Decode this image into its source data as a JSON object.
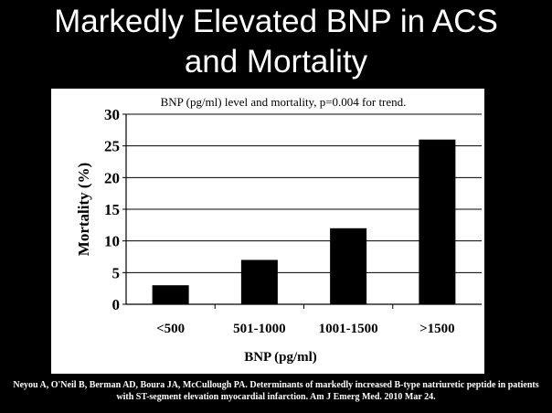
{
  "slide": {
    "title_line1": "Markedly Elevated BNP in ACS",
    "title_line2": "and Mortality",
    "citation_line1": "Neyou A, O'Neil B, Berman AD, Boura JA, McCullough PA.  Determinants of markedly increased B-type natriuretic peptide in patients",
    "citation_line2": "with ST-segment elevation myocardial infarction.  Am J Emerg Med. 2010 Mar 24."
  },
  "chart_data": {
    "type": "bar",
    "title": "BNP (pg/ml) level and mortality, p=0.004 for trend.",
    "xlabel": "BNP (pg/ml)",
    "ylabel": "Mortality (%)",
    "categories": [
      "<500",
      "501-1000",
      "1001-1500",
      ">1500"
    ],
    "values": [
      3,
      7,
      12,
      26
    ],
    "ylim": [
      0,
      30
    ],
    "yticks": [
      0,
      5,
      10,
      15,
      20,
      25,
      30
    ],
    "grid": true,
    "bar_color": "#000000"
  }
}
